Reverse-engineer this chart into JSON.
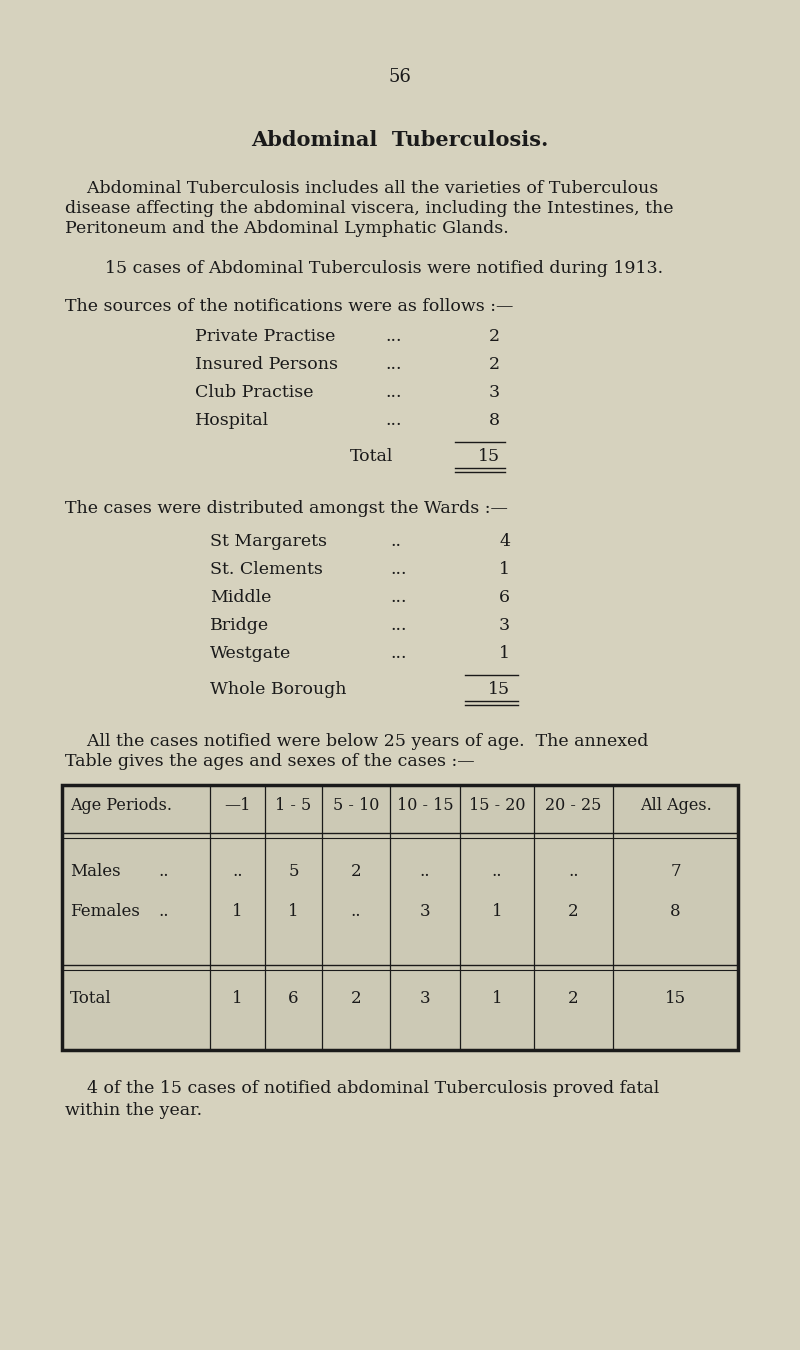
{
  "bg_color": "#d6d2be",
  "text_color": "#1a1a1a",
  "page_number": "56",
  "title": "Abdominal  Tuberculosis.",
  "intro_line1": "    Abdominal Tuberculosis includes all the varieties of Tuberculous",
  "intro_line2": "disease affecting the abdominal viscera, including the Intestines, the",
  "intro_line3": "Peritoneum and the Abdominal Lymphatic Glands.",
  "cases_text": "15 cases of Abdominal Tuberculosis were notified during 1913.",
  "sources_intro": "The sources of the notifications were as follows :—",
  "sources": [
    {
      "label": "Private Practise",
      "dots": "...",
      "value": "2"
    },
    {
      "label": "Insured Persons",
      "dots": "...",
      "value": "2"
    },
    {
      "label": "Club Practise",
      "dots": "...",
      "value": "3"
    },
    {
      "label": "Hospital",
      "dots": "...",
      "value": "8"
    }
  ],
  "sources_total_label": "Total",
  "sources_total_value": "15",
  "wards_intro": "The cases were distributed amongst the Wards :—",
  "wards": [
    {
      "label": "St Margarets",
      "dots": "..",
      "value": "4"
    },
    {
      "label": "St. Clements",
      "dots": "...",
      "value": "1"
    },
    {
      "label": "Middle",
      "dots": "...",
      "value": "6"
    },
    {
      "label": "Bridge",
      "dots": "...",
      "value": "3"
    },
    {
      "label": "Westgate",
      "dots": "...",
      "value": "1"
    }
  ],
  "wards_total_label": "Whole Borough",
  "wards_total_value": "15",
  "age_intro_line1": "    All the cases notified were below 25 years of age.  The ​annexed",
  "age_intro_line2": "Table gives the ages and sexes of the cases :—",
  "table_headers": [
    "Age Periods.",
    "—1",
    "1 - 5",
    "5 - 10",
    "10 - 15",
    "15 - 20",
    "20 - 25",
    "All Ages."
  ],
  "males_label": "Males",
  "males_dots": "..",
  "males_values": [
    "..",
    "5",
    "2",
    "..",
    "..",
    "..",
    "7"
  ],
  "females_label": "Females",
  "females_dots": "..",
  "females_values": [
    "1",
    "1",
    "..",
    "3",
    "1",
    "2",
    "8"
  ],
  "total_label": "Total",
  "total_values": [
    "1",
    "6",
    "2",
    "3",
    "1",
    "2",
    "15"
  ],
  "footer_line1": "    4 of the 15 cases of notified abdominal Tuberculosis proved ​fatal",
  "footer_line2": "within the year."
}
